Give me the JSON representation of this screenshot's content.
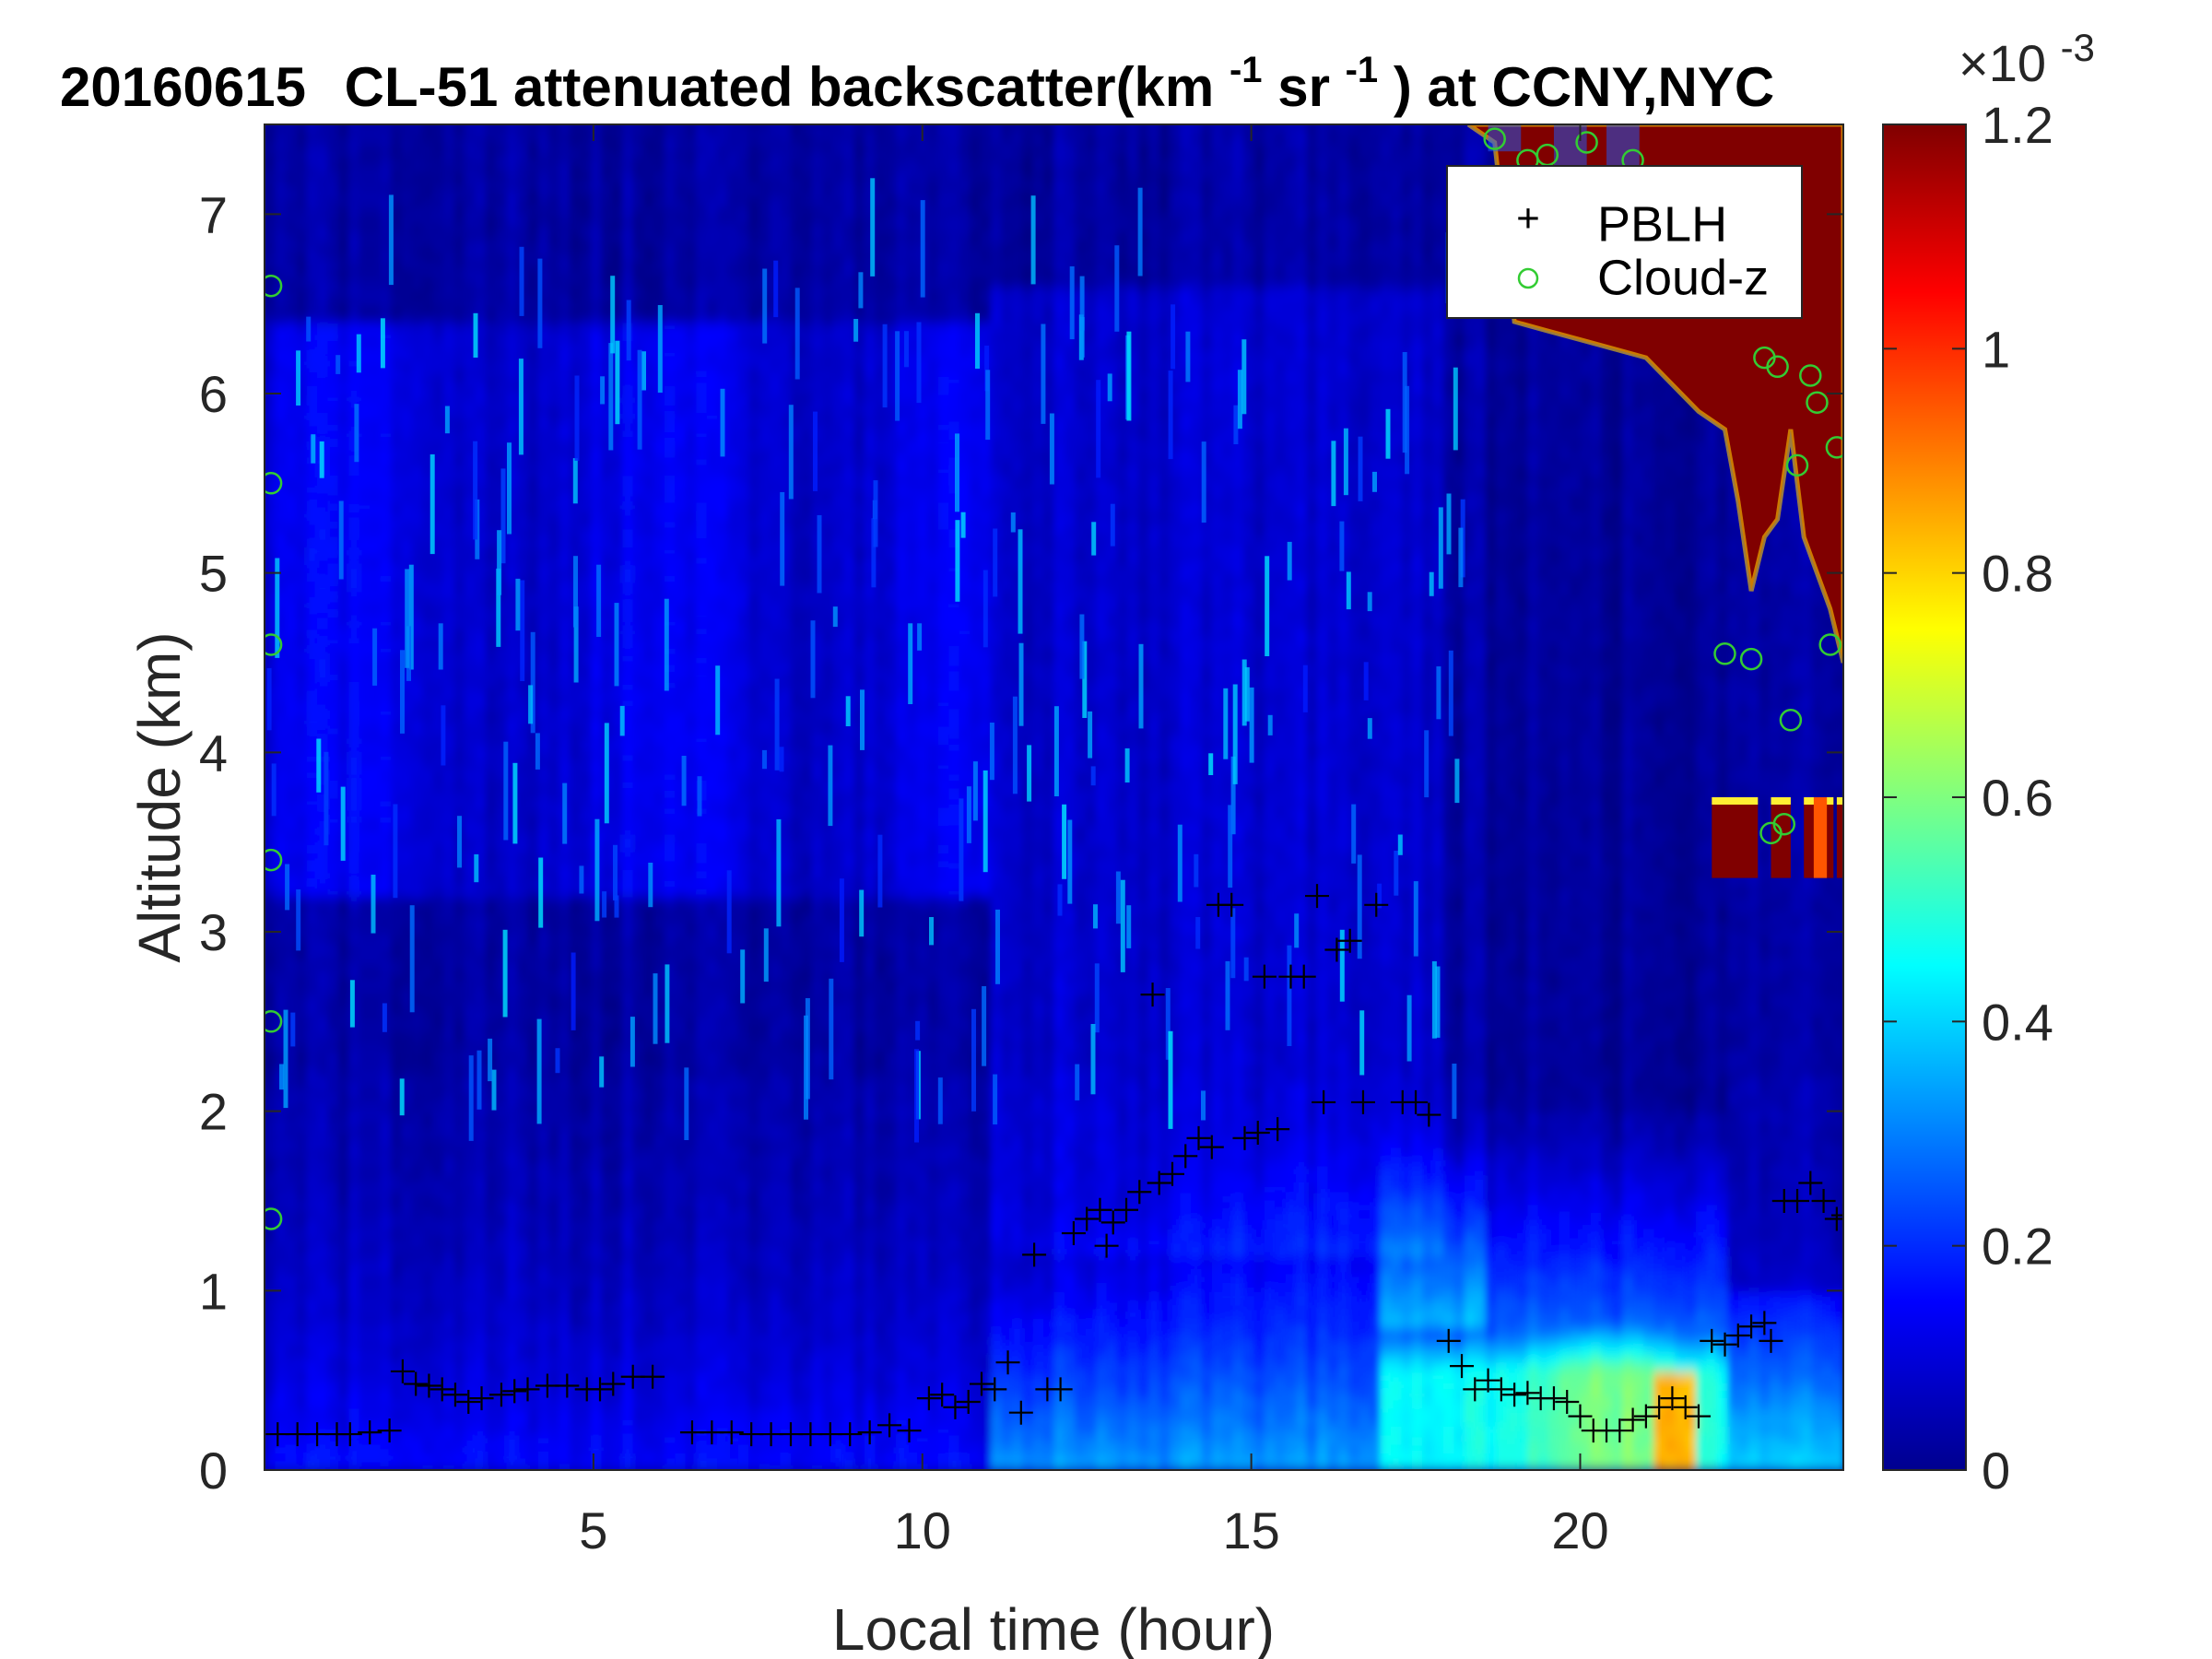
{
  "chart_data": {
    "type": "heatmap",
    "title": {
      "date": "20160615",
      "pre": "CL-51 attenuated backscatter(km",
      "sup1": "-1",
      "mid": "sr",
      "sup2": "-1",
      "post": ") at CCNY,NYC"
    },
    "xlabel": "Local time (hour)",
    "ylabel": "Altitude (km)",
    "xlim": [
      0,
      24
    ],
    "ylim": [
      0,
      7.5
    ],
    "xticks": [
      5,
      10,
      15,
      20
    ],
    "yticks": [
      0,
      1,
      2,
      3,
      4,
      5,
      6,
      7
    ],
    "colorbar": {
      "range": [
        0,
        0.0012
      ],
      "ticks": [
        "0",
        "0.2",
        "0.4",
        "0.6",
        "0.8",
        "1",
        "1.2"
      ],
      "tick_values": [
        0,
        0.2,
        0.4,
        0.6,
        0.8,
        1.0,
        1.2
      ],
      "multiplier_base": "×10",
      "multiplier_exp": "-3",
      "colormap": "jet"
    },
    "legend": {
      "placement": "top-right",
      "entries": [
        {
          "label": "PBLH",
          "marker": "+",
          "color": "#000000"
        },
        {
          "label": "Cloud-z",
          "marker": "o",
          "color": "#33cc33"
        }
      ]
    },
    "series": [
      {
        "name": "PBLH",
        "points": [
          [
            0.2,
            0.2
          ],
          [
            0.5,
            0.2
          ],
          [
            0.8,
            0.2
          ],
          [
            1.1,
            0.2
          ],
          [
            1.3,
            0.2
          ],
          [
            1.6,
            0.21
          ],
          [
            1.9,
            0.22
          ],
          [
            2.1,
            0.55
          ],
          [
            2.3,
            0.48
          ],
          [
            2.5,
            0.47
          ],
          [
            2.7,
            0.45
          ],
          [
            2.9,
            0.42
          ],
          [
            3.1,
            0.38
          ],
          [
            3.3,
            0.4
          ],
          [
            3.6,
            0.42
          ],
          [
            3.8,
            0.44
          ],
          [
            4.0,
            0.45
          ],
          [
            4.3,
            0.47
          ],
          [
            4.6,
            0.47
          ],
          [
            4.9,
            0.45
          ],
          [
            5.1,
            0.45
          ],
          [
            5.3,
            0.48
          ],
          [
            5.6,
            0.52
          ],
          [
            5.9,
            0.52
          ],
          [
            6.5,
            0.21
          ],
          [
            6.8,
            0.21
          ],
          [
            7.1,
            0.21
          ],
          [
            7.4,
            0.2
          ],
          [
            7.7,
            0.2
          ],
          [
            8.0,
            0.2
          ],
          [
            8.3,
            0.2
          ],
          [
            8.6,
            0.2
          ],
          [
            8.9,
            0.2
          ],
          [
            9.2,
            0.21
          ],
          [
            9.5,
            0.25
          ],
          [
            9.8,
            0.22
          ],
          [
            10.1,
            0.4
          ],
          [
            10.3,
            0.42
          ],
          [
            10.5,
            0.35
          ],
          [
            10.7,
            0.38
          ],
          [
            10.9,
            0.48
          ],
          [
            11.1,
            0.45
          ],
          [
            11.3,
            0.6
          ],
          [
            11.5,
            0.32
          ],
          [
            11.7,
            1.2
          ],
          [
            11.9,
            0.45
          ],
          [
            12.1,
            0.45
          ],
          [
            12.3,
            1.32
          ],
          [
            12.5,
            1.4
          ],
          [
            12.7,
            1.45
          ],
          [
            12.8,
            1.25
          ],
          [
            12.9,
            1.38
          ],
          [
            13.1,
            1.45
          ],
          [
            13.3,
            1.55
          ],
          [
            13.5,
            2.65
          ],
          [
            13.6,
            1.6
          ],
          [
            13.8,
            1.65
          ],
          [
            14.0,
            1.75
          ],
          [
            14.2,
            1.85
          ],
          [
            14.4,
            1.8
          ],
          [
            14.5,
            3.15
          ],
          [
            14.7,
            3.15
          ],
          [
            14.9,
            1.85
          ],
          [
            15.1,
            1.88
          ],
          [
            15.2,
            2.75
          ],
          [
            15.4,
            1.9
          ],
          [
            15.6,
            2.75
          ],
          [
            15.8,
            2.75
          ],
          [
            16.0,
            3.2
          ],
          [
            16.1,
            2.05
          ],
          [
            16.3,
            2.9
          ],
          [
            16.5,
            2.95
          ],
          [
            16.7,
            2.05
          ],
          [
            16.9,
            3.15
          ],
          [
            17.3,
            2.05
          ],
          [
            17.5,
            2.05
          ],
          [
            17.7,
            1.98
          ],
          [
            18.0,
            0.72
          ],
          [
            18.2,
            0.58
          ],
          [
            18.4,
            0.45
          ],
          [
            18.6,
            0.5
          ],
          [
            18.8,
            0.45
          ],
          [
            19.0,
            0.42
          ],
          [
            19.2,
            0.43
          ],
          [
            19.4,
            0.4
          ],
          [
            19.6,
            0.4
          ],
          [
            19.8,
            0.38
          ],
          [
            20.0,
            0.3
          ],
          [
            20.2,
            0.22
          ],
          [
            20.4,
            0.22
          ],
          [
            20.6,
            0.22
          ],
          [
            20.8,
            0.28
          ],
          [
            21.0,
            0.3
          ],
          [
            21.2,
            0.35
          ],
          [
            21.4,
            0.4
          ],
          [
            21.6,
            0.35
          ],
          [
            21.8,
            0.3
          ],
          [
            22.0,
            0.72
          ],
          [
            22.2,
            0.7
          ],
          [
            22.4,
            0.75
          ],
          [
            22.6,
            0.8
          ],
          [
            22.8,
            0.82
          ],
          [
            22.9,
            0.72
          ],
          [
            23.1,
            1.5
          ],
          [
            23.3,
            1.5
          ],
          [
            23.5,
            1.6
          ],
          [
            23.7,
            1.5
          ],
          [
            23.9,
            1.4
          ],
          [
            24.0,
            1.42
          ]
        ]
      },
      {
        "name": "Cloud-z",
        "points": [
          [
            18.7,
            7.42
          ],
          [
            19.2,
            7.3
          ],
          [
            19.5,
            7.33
          ],
          [
            20.1,
            7.4
          ],
          [
            20.8,
            7.3
          ],
          [
            22.2,
            4.55
          ],
          [
            22.6,
            4.52
          ],
          [
            22.8,
            6.2
          ],
          [
            22.9,
            3.55
          ],
          [
            23.0,
            6.15
          ],
          [
            23.1,
            3.6
          ],
          [
            23.2,
            4.18
          ],
          [
            23.3,
            5.6
          ],
          [
            23.5,
            6.1
          ],
          [
            23.6,
            5.95
          ],
          [
            23.8,
            4.6
          ],
          [
            23.9,
            5.7
          ],
          [
            0.1,
            6.6
          ],
          [
            0.1,
            5.5
          ],
          [
            0.1,
            4.6
          ],
          [
            0.1,
            3.4
          ],
          [
            0.1,
            2.5
          ],
          [
            0.1,
            1.4
          ]
        ]
      }
    ]
  }
}
